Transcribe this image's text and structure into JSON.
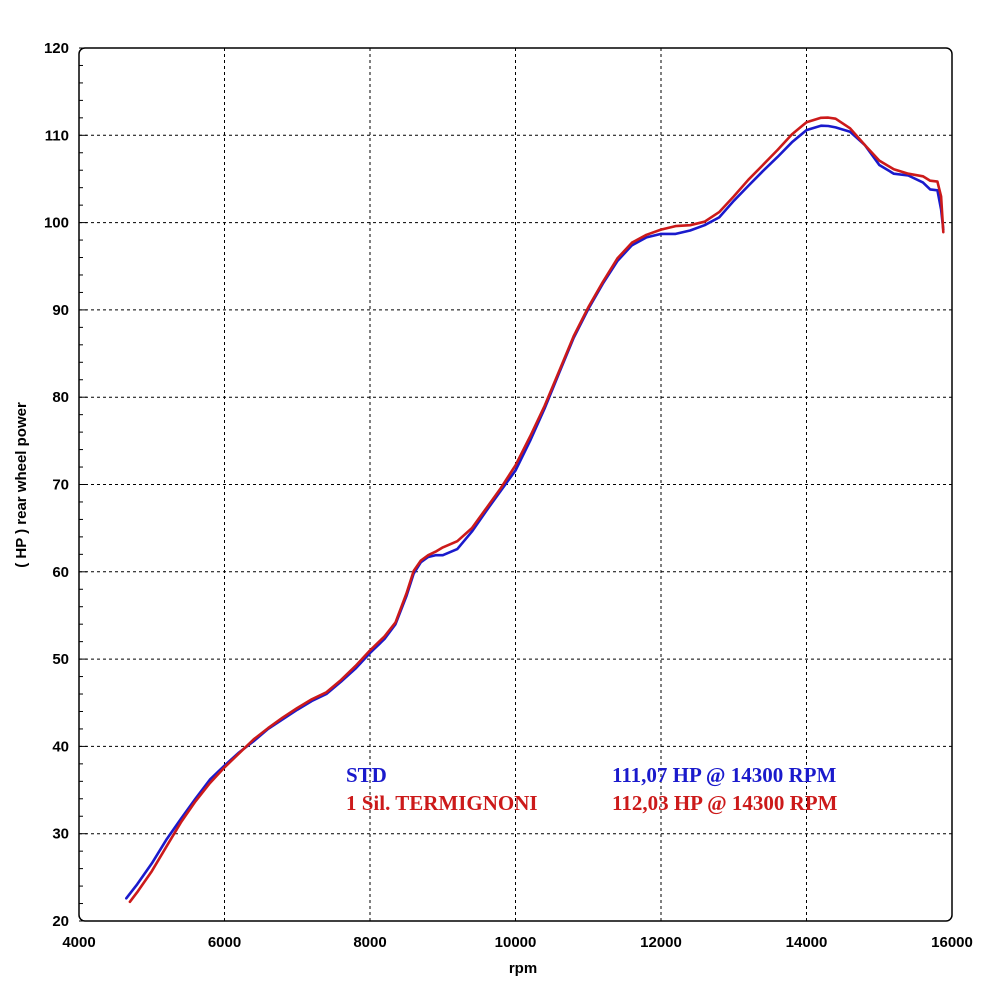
{
  "chart_data": {
    "type": "line",
    "xlabel": "rpm",
    "ylabel": "( HP )  rear  wheel  power",
    "xlim": [
      4000,
      16000
    ],
    "ylim": [
      20,
      120
    ],
    "x_ticks": [
      4000,
      6000,
      8000,
      10000,
      12000,
      14000,
      16000
    ],
    "y_ticks": [
      20,
      30,
      40,
      50,
      60,
      70,
      80,
      90,
      100,
      110,
      120
    ],
    "grid": true,
    "legend_position": "bottom-right",
    "series": [
      {
        "name": "STD",
        "summary": "111,07 HP @ 14300 RPM",
        "color": "#1a1acc",
        "points": [
          [
            4650,
            22.6
          ],
          [
            4800,
            24.2
          ],
          [
            5000,
            26.6
          ],
          [
            5200,
            29.3
          ],
          [
            5400,
            31.7
          ],
          [
            5600,
            34.0
          ],
          [
            5800,
            36.2
          ],
          [
            6000,
            37.8
          ],
          [
            6200,
            39.3
          ],
          [
            6400,
            40.6
          ],
          [
            6600,
            42.0
          ],
          [
            6800,
            43.1
          ],
          [
            7000,
            44.2
          ],
          [
            7200,
            45.2
          ],
          [
            7400,
            46.0
          ],
          [
            7600,
            47.4
          ],
          [
            7800,
            48.9
          ],
          [
            8000,
            50.7
          ],
          [
            8200,
            52.3
          ],
          [
            8350,
            54.0
          ],
          [
            8500,
            57.2
          ],
          [
            8600,
            59.8
          ],
          [
            8700,
            61.1
          ],
          [
            8800,
            61.7
          ],
          [
            8900,
            61.9
          ],
          [
            9000,
            61.9
          ],
          [
            9200,
            62.6
          ],
          [
            9400,
            64.6
          ],
          [
            9600,
            67.0
          ],
          [
            9800,
            69.3
          ],
          [
            10000,
            71.6
          ],
          [
            10200,
            75.0
          ],
          [
            10400,
            78.7
          ],
          [
            10600,
            82.8
          ],
          [
            10800,
            86.8
          ],
          [
            11000,
            90.1
          ],
          [
            11200,
            93.0
          ],
          [
            11400,
            95.6
          ],
          [
            11600,
            97.4
          ],
          [
            11800,
            98.3
          ],
          [
            12000,
            98.7
          ],
          [
            12200,
            98.7
          ],
          [
            12400,
            99.1
          ],
          [
            12600,
            99.7
          ],
          [
            12800,
            100.6
          ],
          [
            13000,
            102.5
          ],
          [
            13200,
            104.2
          ],
          [
            13400,
            105.9
          ],
          [
            13600,
            107.5
          ],
          [
            13800,
            109.2
          ],
          [
            14000,
            110.6
          ],
          [
            14200,
            111.1
          ],
          [
            14300,
            111.07
          ],
          [
            14400,
            110.9
          ],
          [
            14600,
            110.4
          ],
          [
            14800,
            108.9
          ],
          [
            15000,
            106.6
          ],
          [
            15200,
            105.6
          ],
          [
            15400,
            105.4
          ],
          [
            15600,
            104.6
          ],
          [
            15700,
            103.8
          ],
          [
            15800,
            103.7
          ],
          [
            15850,
            101.5
          ],
          [
            15880,
            99.2
          ]
        ]
      },
      {
        "name": "1 Sil. TERMIGNONI",
        "summary": "112,03 HP @ 14300 RPM",
        "color": "#cc1a1a",
        "points": [
          [
            4700,
            22.2
          ],
          [
            4800,
            23.3
          ],
          [
            5000,
            25.7
          ],
          [
            5200,
            28.5
          ],
          [
            5400,
            31.3
          ],
          [
            5600,
            33.7
          ],
          [
            5800,
            35.8
          ],
          [
            6000,
            37.6
          ],
          [
            6200,
            39.2
          ],
          [
            6400,
            40.8
          ],
          [
            6600,
            42.1
          ],
          [
            6800,
            43.3
          ],
          [
            7000,
            44.4
          ],
          [
            7200,
            45.4
          ],
          [
            7400,
            46.2
          ],
          [
            7600,
            47.6
          ],
          [
            7800,
            49.2
          ],
          [
            8000,
            51.0
          ],
          [
            8200,
            52.6
          ],
          [
            8350,
            54.2
          ],
          [
            8500,
            57.5
          ],
          [
            8600,
            60.1
          ],
          [
            8700,
            61.3
          ],
          [
            8800,
            61.9
          ],
          [
            8900,
            62.3
          ],
          [
            9000,
            62.8
          ],
          [
            9200,
            63.5
          ],
          [
            9400,
            65.0
          ],
          [
            9600,
            67.3
          ],
          [
            9800,
            69.6
          ],
          [
            10000,
            72.2
          ],
          [
            10200,
            75.5
          ],
          [
            10400,
            79.0
          ],
          [
            10600,
            83.0
          ],
          [
            10800,
            87.0
          ],
          [
            11000,
            90.3
          ],
          [
            11200,
            93.2
          ],
          [
            11400,
            95.9
          ],
          [
            11600,
            97.7
          ],
          [
            11800,
            98.6
          ],
          [
            12000,
            99.2
          ],
          [
            12200,
            99.6
          ],
          [
            12400,
            99.7
          ],
          [
            12600,
            100.1
          ],
          [
            12800,
            101.2
          ],
          [
            13000,
            103.0
          ],
          [
            13200,
            104.9
          ],
          [
            13400,
            106.6
          ],
          [
            13600,
            108.3
          ],
          [
            13800,
            110.1
          ],
          [
            14000,
            111.5
          ],
          [
            14200,
            112.0
          ],
          [
            14300,
            112.03
          ],
          [
            14400,
            111.9
          ],
          [
            14600,
            110.8
          ],
          [
            14800,
            108.9
          ],
          [
            15000,
            107.1
          ],
          [
            15200,
            106.1
          ],
          [
            15400,
            105.6
          ],
          [
            15600,
            105.3
          ],
          [
            15700,
            104.8
          ],
          [
            15800,
            104.7
          ],
          [
            15850,
            103.0
          ],
          [
            15880,
            98.9
          ]
        ]
      }
    ]
  }
}
